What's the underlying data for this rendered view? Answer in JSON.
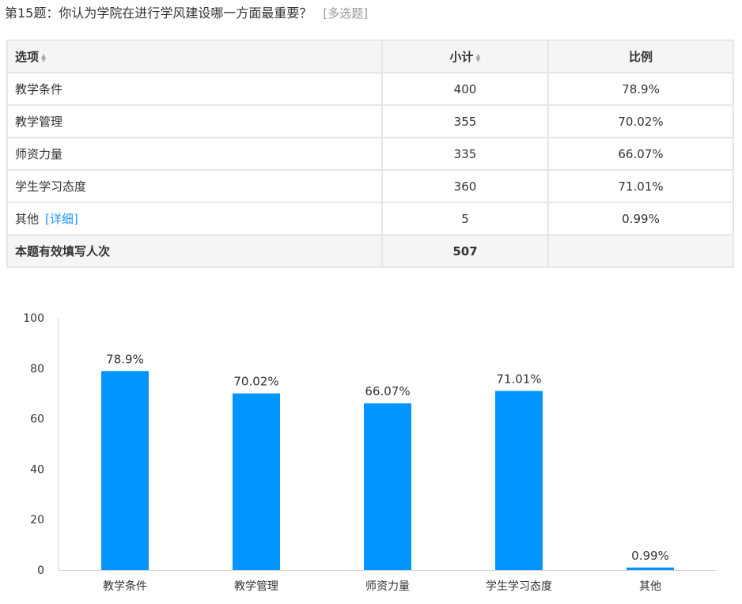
{
  "question": {
    "title": "第15题：你认为学院在进行学风建设哪一方面最重要？",
    "tag": "[多选题]"
  },
  "table": {
    "headers": {
      "option": "选项",
      "count": "小计",
      "ratio": "比例"
    },
    "rows": [
      {
        "option": "教学条件",
        "count": "400",
        "ratio": "78.9%"
      },
      {
        "option": "教学管理",
        "count": "355",
        "ratio": "70.02%"
      },
      {
        "option": "师资力量",
        "count": "335",
        "ratio": "66.07%"
      },
      {
        "option": "学生学习态度",
        "count": "360",
        "ratio": "71.01%"
      },
      {
        "option": "其他",
        "count": "5",
        "ratio": "0.99%",
        "link": "[详细]"
      }
    ],
    "total": {
      "label": "本题有效填写人次",
      "count": "507",
      "ratio": ""
    }
  },
  "chart_data": {
    "type": "bar",
    "categories": [
      "教学条件",
      "教学管理",
      "师资力量",
      "学生学习态度",
      "其他"
    ],
    "values": [
      78.9,
      70.02,
      66.07,
      71.01,
      0.99
    ],
    "data_labels": [
      "78.9%",
      "70.02%",
      "66.07%",
      "71.01%",
      "0.99%"
    ],
    "ylim": [
      0,
      100
    ],
    "yticks": [
      0,
      20,
      40,
      60,
      80,
      100
    ],
    "grid": false,
    "bar_color": "#0095ff"
  }
}
